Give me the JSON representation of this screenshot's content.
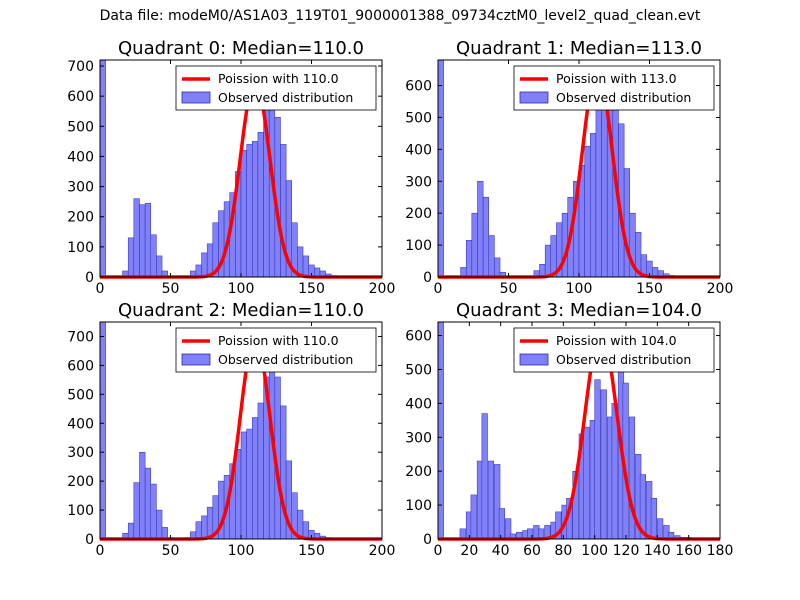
{
  "figure_title": "Data file: modeM0/AS1A03_119T01_9000001388_09734cztM0_level2_quad_clean.evt",
  "colors": {
    "hist_fill": "#8080f8",
    "hist_edge": "#2c2cb0",
    "poisson": "#ff0000"
  },
  "chart_data": [
    {
      "type": "bar",
      "title": "Quadrant 0: Median=110.0",
      "xlim": [
        0,
        200
      ],
      "ylim": [
        0,
        720
      ],
      "xticks": [
        0,
        50,
        100,
        150,
        200
      ],
      "yticks": [
        0,
        100,
        200,
        300,
        400,
        500,
        600,
        700
      ],
      "bin_width": 4,
      "hist": [
        [
          0,
          720
        ],
        [
          16,
          20
        ],
        [
          20,
          130
        ],
        [
          24,
          260
        ],
        [
          28,
          240
        ],
        [
          32,
          245
        ],
        [
          36,
          140
        ],
        [
          40,
          70
        ],
        [
          44,
          20
        ],
        [
          48,
          3
        ],
        [
          60,
          3
        ],
        [
          64,
          20
        ],
        [
          68,
          40
        ],
        [
          72,
          80
        ],
        [
          76,
          110
        ],
        [
          80,
          180
        ],
        [
          84,
          220
        ],
        [
          88,
          250
        ],
        [
          92,
          280
        ],
        [
          96,
          350
        ],
        [
          100,
          420
        ],
        [
          104,
          440
        ],
        [
          108,
          450
        ],
        [
          112,
          480
        ],
        [
          116,
          560
        ],
        [
          120,
          660
        ],
        [
          124,
          530
        ],
        [
          128,
          440
        ],
        [
          132,
          320
        ],
        [
          136,
          180
        ],
        [
          140,
          100
        ],
        [
          144,
          70
        ],
        [
          148,
          40
        ],
        [
          152,
          30
        ],
        [
          156,
          20
        ],
        [
          160,
          10
        ],
        [
          164,
          5
        ]
      ],
      "poisson_mean": 110.0,
      "poisson_peak": 650,
      "legend": {
        "line_label": "Poission with 110.0",
        "hist_label": "Observed distribution"
      }
    },
    {
      "type": "bar",
      "title": "Quadrant 1: Median=113.0",
      "xlim": [
        0,
        200
      ],
      "ylim": [
        0,
        680
      ],
      "xticks": [
        0,
        50,
        100,
        150,
        200
      ],
      "yticks": [
        0,
        100,
        200,
        300,
        400,
        500,
        600
      ],
      "bin_width": 4,
      "hist": [
        [
          0,
          680
        ],
        [
          16,
          30
        ],
        [
          20,
          115
        ],
        [
          24,
          200
        ],
        [
          28,
          300
        ],
        [
          32,
          250
        ],
        [
          36,
          130
        ],
        [
          40,
          60
        ],
        [
          44,
          15
        ],
        [
          48,
          3
        ],
        [
          64,
          3
        ],
        [
          68,
          20
        ],
        [
          72,
          40
        ],
        [
          76,
          100
        ],
        [
          80,
          130
        ],
        [
          84,
          170
        ],
        [
          88,
          200
        ],
        [
          92,
          250
        ],
        [
          96,
          300
        ],
        [
          100,
          350
        ],
        [
          104,
          410
        ],
        [
          108,
          450
        ],
        [
          112,
          540
        ],
        [
          116,
          590
        ],
        [
          120,
          640
        ],
        [
          124,
          580
        ],
        [
          128,
          480
        ],
        [
          132,
          340
        ],
        [
          136,
          200
        ],
        [
          140,
          140
        ],
        [
          144,
          70
        ],
        [
          148,
          50
        ],
        [
          152,
          30
        ],
        [
          156,
          20
        ],
        [
          160,
          10
        ],
        [
          164,
          5
        ]
      ],
      "poisson_mean": 113.0,
      "poisson_peak": 650,
      "legend": {
        "line_label": "Poission with 113.0",
        "hist_label": "Observed distribution"
      }
    },
    {
      "type": "bar",
      "title": "Quadrant 2: Median=110.0",
      "xlim": [
        0,
        200
      ],
      "ylim": [
        0,
        750
      ],
      "xticks": [
        0,
        50,
        100,
        150,
        200
      ],
      "yticks": [
        0,
        100,
        200,
        300,
        400,
        500,
        600,
        700
      ],
      "bin_width": 4,
      "hist": [
        [
          0,
          750
        ],
        [
          16,
          20
        ],
        [
          20,
          55
        ],
        [
          24,
          195
        ],
        [
          28,
          300
        ],
        [
          32,
          245
        ],
        [
          36,
          190
        ],
        [
          40,
          100
        ],
        [
          44,
          40
        ],
        [
          48,
          5
        ],
        [
          60,
          5
        ],
        [
          64,
          25
        ],
        [
          68,
          60
        ],
        [
          72,
          80
        ],
        [
          76,
          110
        ],
        [
          80,
          150
        ],
        [
          84,
          200
        ],
        [
          88,
          220
        ],
        [
          92,
          260
        ],
        [
          96,
          310
        ],
        [
          100,
          370
        ],
        [
          104,
          380
        ],
        [
          108,
          420
        ],
        [
          112,
          470
        ],
        [
          116,
          560
        ],
        [
          120,
          700
        ],
        [
          124,
          560
        ],
        [
          128,
          460
        ],
        [
          132,
          270
        ],
        [
          136,
          160
        ],
        [
          140,
          100
        ],
        [
          144,
          60
        ],
        [
          148,
          30
        ],
        [
          152,
          20
        ],
        [
          156,
          10
        ],
        [
          160,
          5
        ],
        [
          164,
          3
        ]
      ],
      "poisson_mean": 110.0,
      "poisson_peak": 700,
      "legend": {
        "line_label": "Poission with 110.0",
        "hist_label": "Observed distribution"
      }
    },
    {
      "type": "bar",
      "title": "Quadrant 3: Median=104.0",
      "xlim": [
        0,
        180
      ],
      "ylim": [
        0,
        640
      ],
      "xticks": [
        0,
        20,
        40,
        60,
        80,
        100,
        120,
        140,
        160,
        180
      ],
      "yticks": [
        0,
        100,
        200,
        300,
        400,
        500,
        600
      ],
      "bin_width": 3.6,
      "hist": [
        [
          0,
          640
        ],
        [
          14,
          30
        ],
        [
          18,
          80
        ],
        [
          21,
          130
        ],
        [
          25,
          230
        ],
        [
          28,
          370
        ],
        [
          32,
          230
        ],
        [
          36,
          220
        ],
        [
          39,
          90
        ],
        [
          43,
          60
        ],
        [
          46,
          15
        ],
        [
          50,
          20
        ],
        [
          54,
          25
        ],
        [
          57,
          30
        ],
        [
          61,
          40
        ],
        [
          64,
          30
        ],
        [
          68,
          40
        ],
        [
          72,
          50
        ],
        [
          75,
          80
        ],
        [
          79,
          100
        ],
        [
          82,
          120
        ],
        [
          86,
          200
        ],
        [
          90,
          310
        ],
        [
          93,
          330
        ],
        [
          97,
          350
        ],
        [
          100,
          470
        ],
        [
          104,
          440
        ],
        [
          108,
          360
        ],
        [
          111,
          400
        ],
        [
          115,
          610
        ],
        [
          118,
          460
        ],
        [
          122,
          360
        ],
        [
          126,
          250
        ],
        [
          129,
          190
        ],
        [
          133,
          170
        ],
        [
          136,
          120
        ],
        [
          140,
          60
        ],
        [
          144,
          40
        ],
        [
          147,
          20
        ],
        [
          151,
          10
        ],
        [
          154,
          5
        ],
        [
          158,
          5
        ],
        [
          162,
          3
        ],
        [
          165,
          3
        ],
        [
          169,
          2
        ]
      ],
      "poisson_mean": 104.0,
      "poisson_peak": 610,
      "legend": {
        "line_label": "Poission with 104.0",
        "hist_label": "Observed distribution"
      }
    }
  ]
}
